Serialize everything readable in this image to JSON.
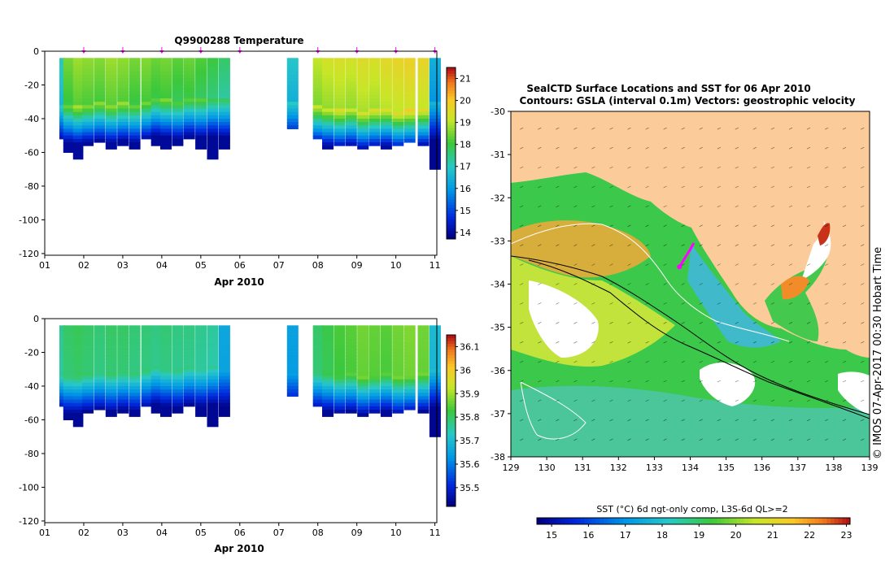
{
  "chart_data": [
    {
      "type": "heatmap",
      "title": "Q9900288  Temperature",
      "xlabel": "Apr 2010",
      "ylabel": "",
      "x_tick_labels": [
        "01",
        "02",
        "03",
        "04",
        "05",
        "06",
        "07",
        "08",
        "09",
        "10",
        "11"
      ],
      "y_tick_labels": [
        "0",
        "-20",
        "-40",
        "-60",
        "-80",
        "-100",
        "-120"
      ],
      "xlim": [
        1,
        11.05
      ],
      "ylim": [
        -121,
        0
      ],
      "profile_markers": [
        2,
        3,
        4,
        5,
        6,
        8,
        9,
        10,
        11
      ],
      "colorbar": {
        "ticks": [
          "14",
          "15",
          "16",
          "17",
          "18",
          "19",
          "20",
          "21"
        ],
        "range": [
          13.7,
          21.5
        ]
      },
      "profiles": [
        {
          "day": 1.45,
          "depth": -52,
          "surface": 17.2,
          "thermocline": -31
        },
        {
          "day": 1.6,
          "depth": -59,
          "surface": 18.6,
          "thermocline": -31
        },
        {
          "day": 1.85,
          "depth": -63,
          "surface": 18.9,
          "thermocline": -32
        },
        {
          "day": 2.1,
          "depth": -55,
          "surface": 18.8,
          "thermocline": -31
        },
        {
          "day": 2.4,
          "depth": -54,
          "surface": 18.7,
          "thermocline": -30
        },
        {
          "day": 2.7,
          "depth": -57,
          "surface": 18.9,
          "thermocline": -31
        },
        {
          "day": 3.0,
          "depth": -56,
          "surface": 18.8,
          "thermocline": -30
        },
        {
          "day": 3.3,
          "depth": -58,
          "surface": 18.6,
          "thermocline": -31
        },
        {
          "day": 3.6,
          "depth": -52,
          "surface": 18.7,
          "thermocline": -29
        },
        {
          "day": 3.85,
          "depth": -56,
          "surface": 18.5,
          "thermocline": -27
        },
        {
          "day": 4.1,
          "depth": -58,
          "surface": 18.6,
          "thermocline": -28
        },
        {
          "day": 4.4,
          "depth": -55,
          "surface": 18.4,
          "thermocline": -29
        },
        {
          "day": 4.7,
          "depth": -52,
          "surface": 18.5,
          "thermocline": -27
        },
        {
          "day": 5.0,
          "depth": -58,
          "surface": 18.3,
          "thermocline": -28
        },
        {
          "day": 5.3,
          "depth": -63,
          "surface": 18.1,
          "thermocline": -27
        },
        {
          "day": 5.6,
          "depth": -58,
          "surface": 17.8,
          "thermocline": -28
        },
        {
          "day": 7.35,
          "depth": -45,
          "surface": 17.0,
          "thermocline": -30
        },
        {
          "day": 8.0,
          "depth": -52,
          "surface": 19.2,
          "thermocline": -32
        },
        {
          "day": 8.25,
          "depth": -58,
          "surface": 19.4,
          "thermocline": -33
        },
        {
          "day": 8.55,
          "depth": -56,
          "surface": 19.5,
          "thermocline": -34
        },
        {
          "day": 8.85,
          "depth": -55,
          "surface": 19.4,
          "thermocline": -33
        },
        {
          "day": 9.15,
          "depth": -57,
          "surface": 19.6,
          "thermocline": -35
        },
        {
          "day": 9.45,
          "depth": -56,
          "surface": 19.5,
          "thermocline": -34
        },
        {
          "day": 9.75,
          "depth": -58,
          "surface": 19.7,
          "thermocline": -33
        },
        {
          "day": 10.05,
          "depth": -55,
          "surface": 19.8,
          "thermocline": -35
        },
        {
          "day": 10.35,
          "depth": -54,
          "surface": 19.9,
          "thermocline": -34
        },
        {
          "day": 10.7,
          "depth": -56,
          "surface": 19.8,
          "thermocline": -33
        },
        {
          "day": 11.0,
          "depth": -69,
          "surface": 16.5,
          "thermocline": -30
        }
      ]
    },
    {
      "type": "heatmap",
      "title": "",
      "xlabel": "Apr 2010",
      "ylabel": "",
      "x_tick_labels": [
        "01",
        "02",
        "03",
        "04",
        "05",
        "06",
        "07",
        "08",
        "09",
        "10",
        "11"
      ],
      "y_tick_labels": [
        "0",
        "-20",
        "-40",
        "-60",
        "-80",
        "-100",
        "-120"
      ],
      "xlim": [
        1,
        11.05
      ],
      "ylim": [
        -121,
        0
      ],
      "colorbar": {
        "ticks": [
          "35.5",
          "35.6",
          "35.7",
          "35.8",
          "35.9",
          "36",
          "36.1"
        ],
        "range": [
          35.42,
          36.15
        ]
      },
      "profiles": [
        {
          "day": 1.45,
          "depth": -52,
          "surface": 35.77,
          "halocline": -32
        },
        {
          "day": 1.6,
          "depth": -59,
          "surface": 35.8,
          "halocline": -33
        },
        {
          "day": 1.85,
          "depth": -63,
          "surface": 35.81,
          "halocline": -33
        },
        {
          "day": 2.1,
          "depth": -55,
          "surface": 35.8,
          "halocline": -32
        },
        {
          "day": 2.4,
          "depth": -54,
          "surface": 35.79,
          "halocline": -31
        },
        {
          "day": 2.7,
          "depth": -57,
          "surface": 35.8,
          "halocline": -32
        },
        {
          "day": 3.0,
          "depth": -56,
          "surface": 35.8,
          "halocline": -31
        },
        {
          "day": 3.3,
          "depth": -58,
          "surface": 35.79,
          "halocline": -32
        },
        {
          "day": 3.6,
          "depth": -52,
          "surface": 35.79,
          "halocline": -30
        },
        {
          "day": 3.85,
          "depth": -56,
          "surface": 35.78,
          "halocline": -28
        },
        {
          "day": 4.1,
          "depth": -58,
          "surface": 35.79,
          "halocline": -29
        },
        {
          "day": 4.4,
          "depth": -55,
          "surface": 35.78,
          "halocline": -30
        },
        {
          "day": 4.7,
          "depth": -52,
          "surface": 35.78,
          "halocline": -28
        },
        {
          "day": 5.0,
          "depth": -58,
          "surface": 35.77,
          "halocline": -29
        },
        {
          "day": 5.3,
          "depth": -63,
          "surface": 35.76,
          "halocline": -28
        },
        {
          "day": 5.6,
          "depth": -58,
          "surface": 35.66,
          "halocline": -29
        },
        {
          "day": 7.35,
          "depth": -45,
          "surface": 35.65,
          "halocline": -31
        },
        {
          "day": 8.0,
          "depth": -52,
          "surface": 35.8,
          "halocline": -31
        },
        {
          "day": 8.25,
          "depth": -58,
          "surface": 35.82,
          "halocline": -32
        },
        {
          "day": 8.55,
          "depth": -56,
          "surface": 35.84,
          "halocline": -33
        },
        {
          "day": 8.85,
          "depth": -55,
          "surface": 35.85,
          "halocline": -32
        },
        {
          "day": 9.15,
          "depth": -57,
          "surface": 35.87,
          "halocline": -34
        },
        {
          "day": 9.45,
          "depth": -56,
          "surface": 35.86,
          "halocline": -33
        },
        {
          "day": 9.75,
          "depth": -58,
          "surface": 35.85,
          "halocline": -32
        },
        {
          "day": 10.05,
          "depth": -55,
          "surface": 35.87,
          "halocline": -34
        },
        {
          "day": 10.35,
          "depth": -54,
          "surface": 35.88,
          "halocline": -33
        },
        {
          "day": 10.7,
          "depth": -56,
          "surface": 35.87,
          "halocline": -32
        },
        {
          "day": 11.0,
          "depth": -69,
          "surface": 35.7,
          "halocline": -30
        }
      ]
    },
    {
      "type": "heatmap",
      "title": "SealCTD Surface Locations and SST for 06 Apr 2010",
      "subtitle": "Contours: GSLA (interval 0.1m) Vectors: geostrophic velocity",
      "xlabel": "",
      "ylabel": "",
      "x_tick_labels": [
        "129",
        "130",
        "131",
        "132",
        "133",
        "134",
        "135",
        "136",
        "137",
        "138",
        "139"
      ],
      "y_tick_labels": [
        "-30",
        "-31",
        "-32",
        "-33",
        "-34",
        "-35",
        "-36",
        "-37",
        "-38"
      ],
      "xlim": [
        129,
        139
      ],
      "ylim": [
        -38,
        -30
      ],
      "land_color": "#fbcc99",
      "seal_track": [
        [
          134.1,
          -33.05
        ],
        [
          134.0,
          -33.2
        ],
        [
          133.85,
          -33.4
        ],
        [
          133.7,
          -33.6
        ]
      ],
      "colorbar": {
        "label": "SST (°C) 6d ngt-only comp, L3S-6d QL>=2",
        "ticks": [
          "15",
          "16",
          "17",
          "18",
          "19",
          "20",
          "21",
          "22",
          "23"
        ],
        "range": [
          14.6,
          23.1
        ]
      },
      "watermark": "© IMOS 07-Apr-2017 00:30 Hobart Time"
    }
  ],
  "colors": {
    "land": "#fbcc99",
    "marker": "#ff00ff"
  }
}
